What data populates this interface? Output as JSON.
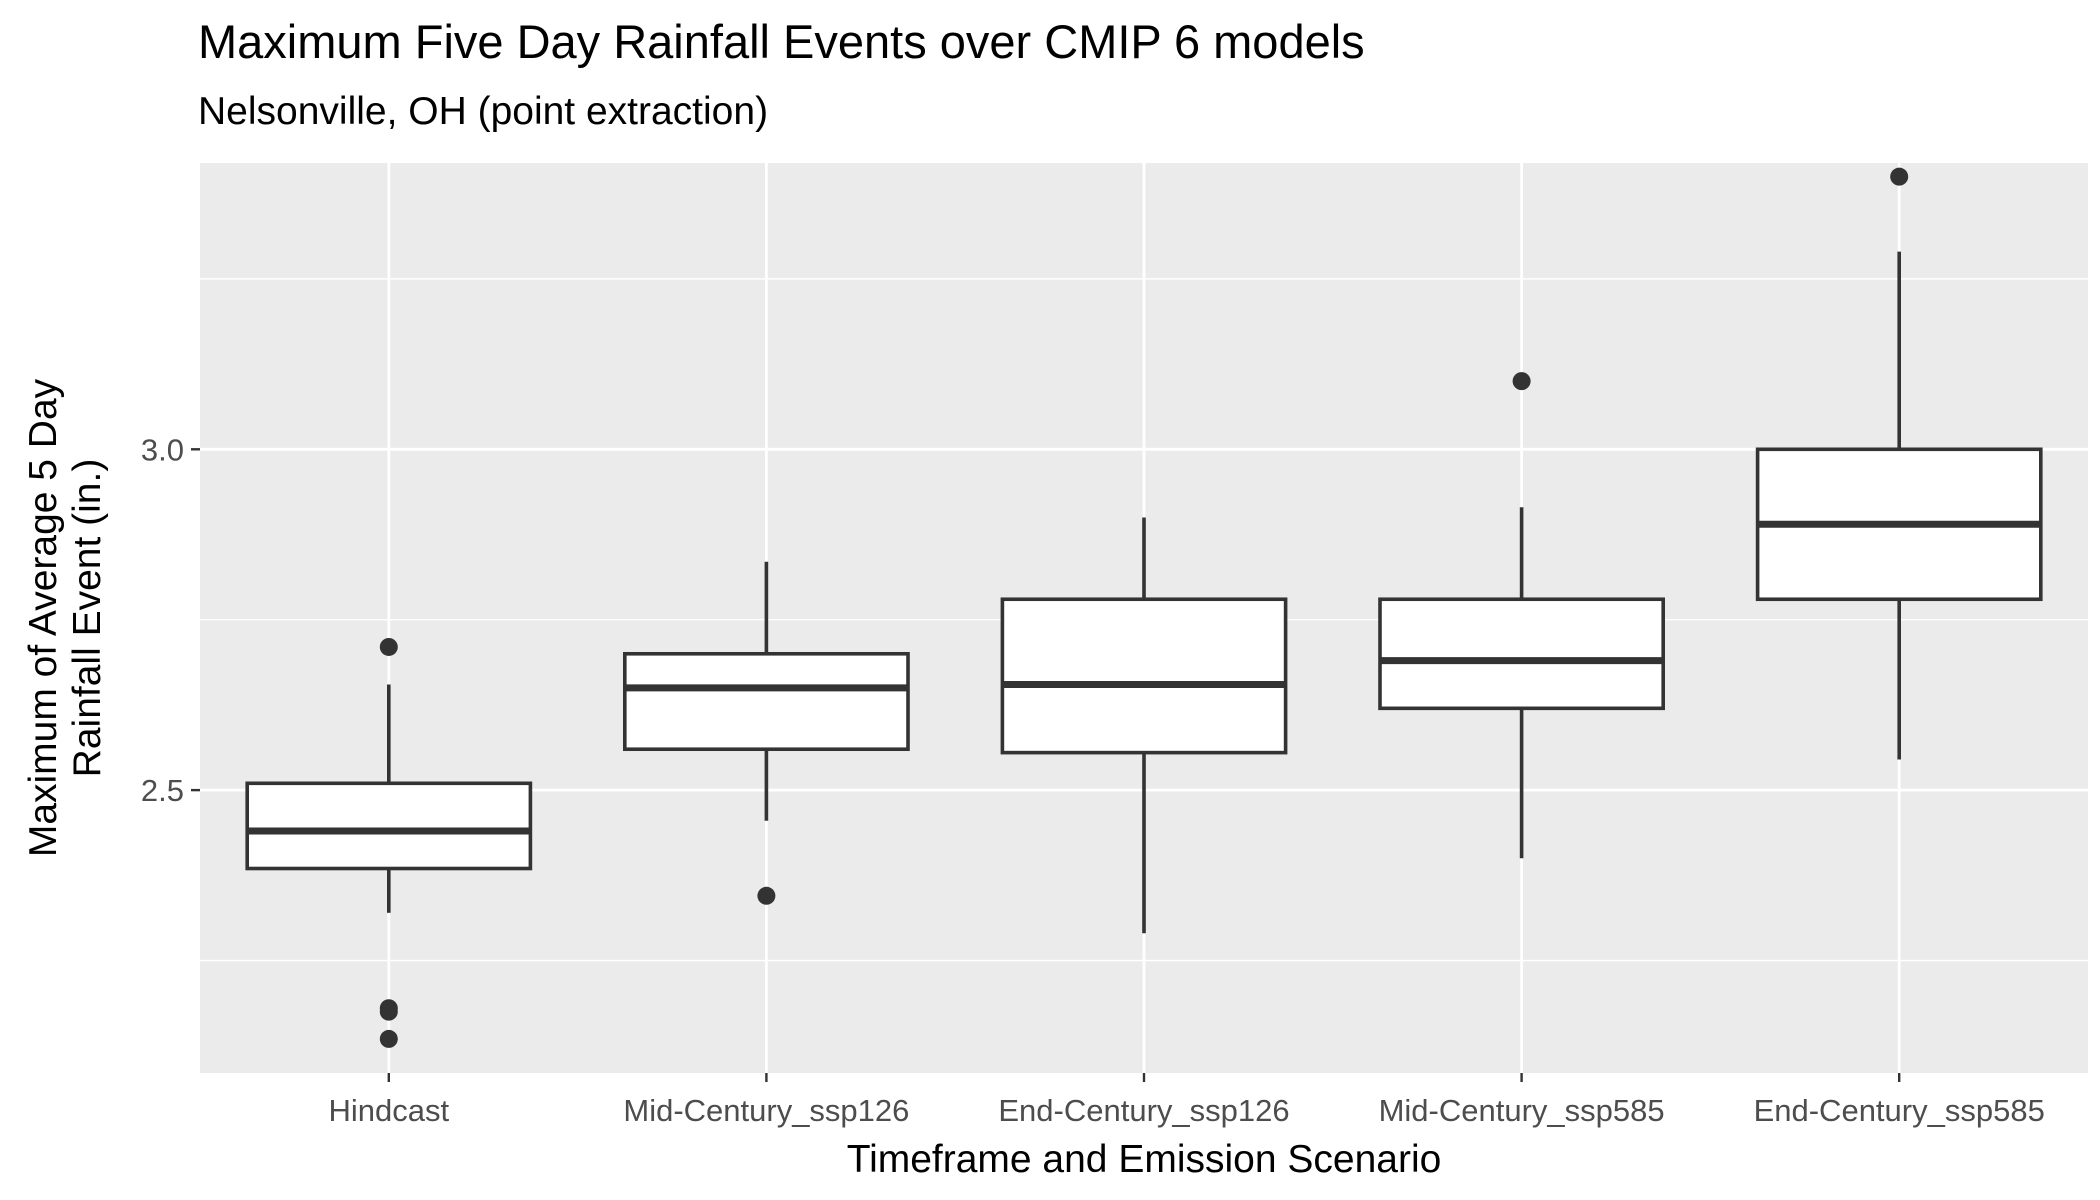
{
  "chart_data": {
    "type": "box",
    "title": "Maximum Five Day Rainfall Events over CMIP 6 models",
    "subtitle": "Nelsonville, OH (point extraction)",
    "xlabel": "Timeframe and Emission Scenario",
    "ylabel_lines": [
      "Maximum of Average 5 Day",
      "Rainfall Event (in.)"
    ],
    "categories": [
      "Hindcast",
      "Mid-Century_ssp126",
      "End-Century_ssp126",
      "Mid-Century_ssp585",
      "End-Century_ssp585"
    ],
    "ylim": [
      2.085,
      3.42
    ],
    "y_ticks": [
      2.5,
      3.0
    ],
    "y_tick_labels": [
      "2.5",
      "3.0"
    ],
    "y_minor_gridlines": [
      2.25,
      2.75,
      3.25
    ],
    "grid": true,
    "boxes": [
      {
        "category": "Hindcast",
        "whisker_low": 2.32,
        "q1": 2.385,
        "median": 2.44,
        "q3": 2.51,
        "whisker_high": 2.655,
        "outliers": [
          2.71,
          2.18,
          2.175,
          2.135
        ]
      },
      {
        "category": "Mid-Century_ssp126",
        "whisker_low": 2.455,
        "q1": 2.56,
        "median": 2.65,
        "q3": 2.7,
        "whisker_high": 2.835,
        "outliers": [
          2.345
        ]
      },
      {
        "category": "End-Century_ssp126",
        "whisker_low": 2.29,
        "q1": 2.555,
        "median": 2.655,
        "q3": 2.78,
        "whisker_high": 2.9,
        "outliers": []
      },
      {
        "category": "Mid-Century_ssp585",
        "whisker_low": 2.4,
        "q1": 2.62,
        "median": 2.69,
        "q3": 2.78,
        "whisker_high": 2.915,
        "outliers": [
          3.1
        ]
      },
      {
        "category": "End-Century_ssp585",
        "whisker_low": 2.545,
        "q1": 2.78,
        "median": 2.89,
        "q3": 3.0,
        "whisker_high": 3.29,
        "outliers": [
          3.4
        ]
      }
    ],
    "colors": {
      "panel": "#ebebeb",
      "grid": "#ffffff",
      "box_line": "#333333",
      "box_fill": "#ffffff",
      "point": "#333333",
      "tick": "#4d4d4d"
    }
  }
}
